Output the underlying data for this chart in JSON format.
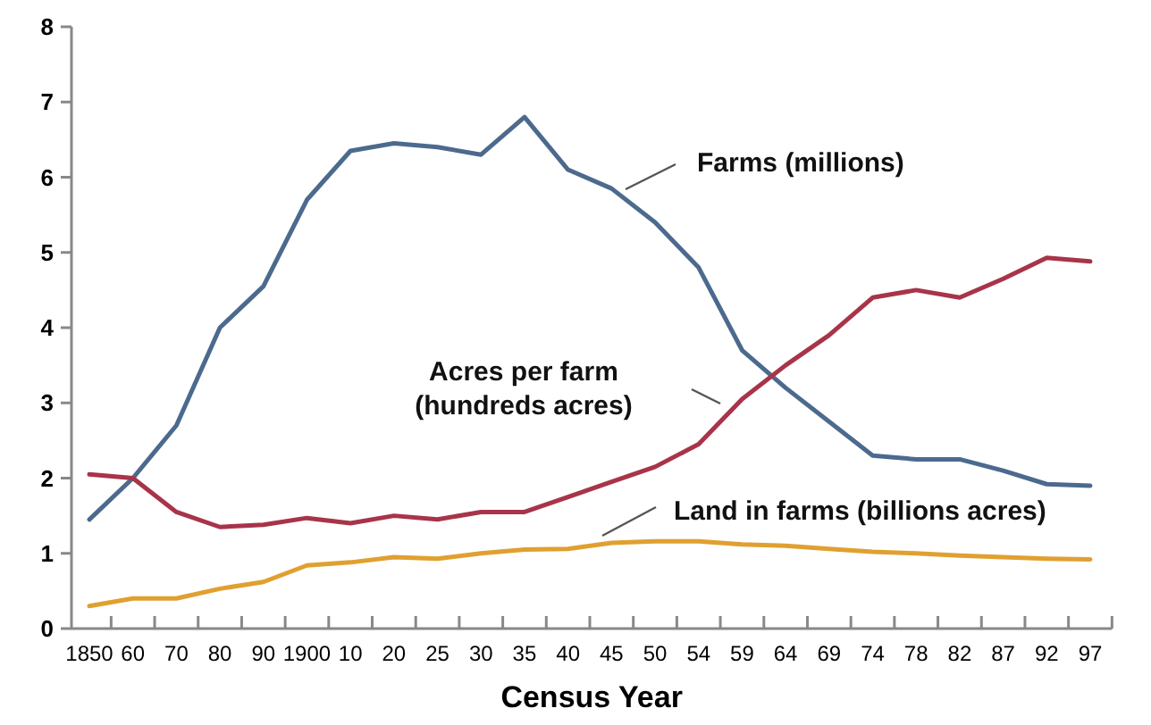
{
  "chart_data": {
    "type": "line",
    "xlabel": "Census Year",
    "categories": [
      "1850",
      "60",
      "70",
      "80",
      "90",
      "1900",
      "10",
      "20",
      "25",
      "30",
      "35",
      "40",
      "45",
      "50",
      "54",
      "59",
      "64",
      "69",
      "74",
      "78",
      "82",
      "87",
      "92",
      "97"
    ],
    "ylim": [
      0,
      8
    ],
    "yticks": [
      0,
      1,
      2,
      3,
      4,
      5,
      6,
      7,
      8
    ],
    "grid": false,
    "legend": false,
    "marker": "none",
    "line_style": "solid",
    "series": [
      {
        "name": "Farms (millions)",
        "color": "#4c6a8e",
        "values": [
          1.45,
          2.0,
          2.7,
          4.0,
          4.55,
          5.7,
          6.35,
          6.45,
          6.4,
          6.3,
          6.8,
          6.1,
          5.85,
          5.4,
          4.8,
          3.7,
          3.2,
          2.75,
          2.3,
          2.25,
          2.25,
          2.1,
          1.92,
          1.9
        ]
      },
      {
        "name": "Acres per farm (hundreds acres)",
        "color": "#a8344a",
        "values": [
          2.05,
          2.0,
          1.55,
          1.35,
          1.38,
          1.47,
          1.4,
          1.5,
          1.45,
          1.55,
          1.55,
          1.75,
          1.95,
          2.15,
          2.45,
          3.05,
          3.5,
          3.9,
          4.4,
          4.5,
          4.4,
          4.65,
          4.93,
          4.88
        ]
      },
      {
        "name": "Land in farms (billions acres)",
        "color": "#e0a030",
        "values": [
          0.3,
          0.4,
          0.4,
          0.53,
          0.62,
          0.84,
          0.88,
          0.95,
          0.93,
          1.0,
          1.05,
          1.06,
          1.14,
          1.16,
          1.16,
          1.12,
          1.1,
          1.06,
          1.02,
          1.0,
          0.97,
          0.95,
          0.93,
          0.92
        ]
      }
    ]
  }
}
